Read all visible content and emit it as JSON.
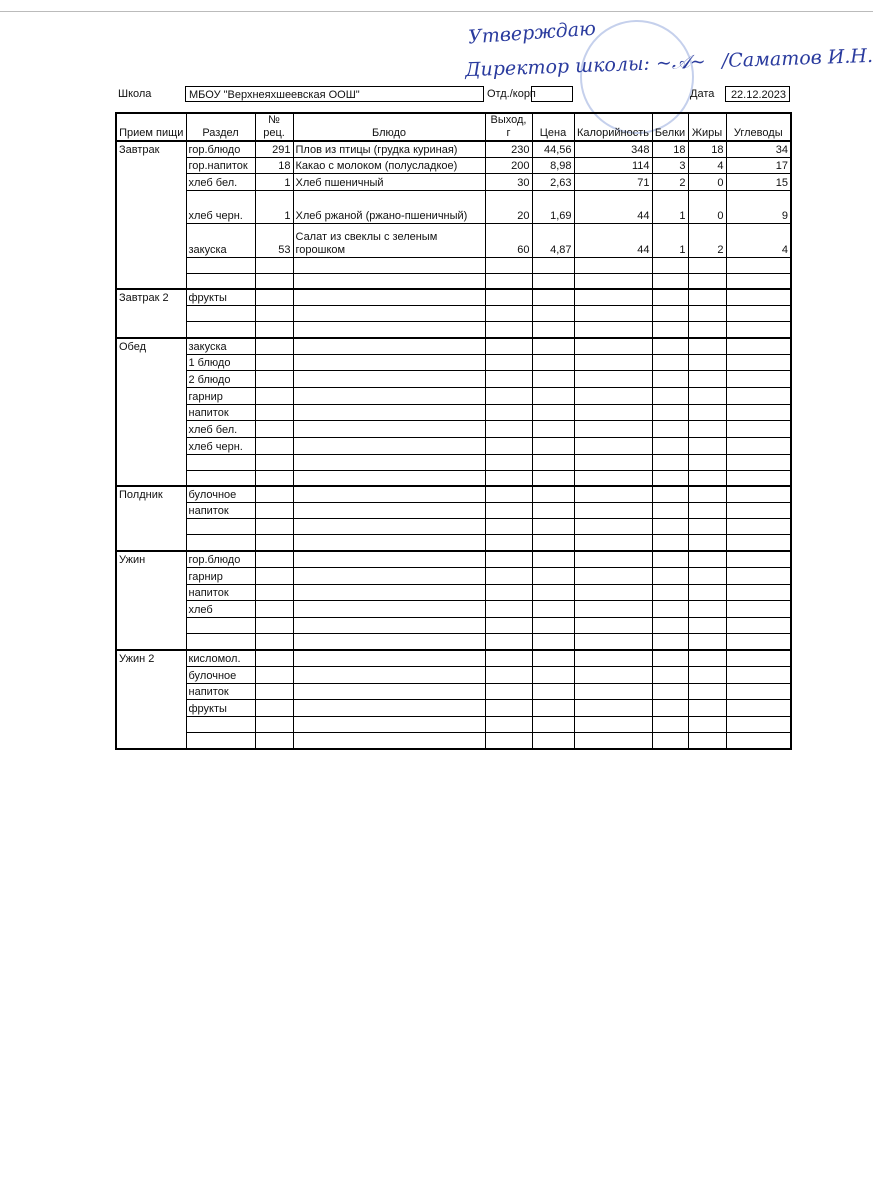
{
  "approval": {
    "title": "Утверждаю",
    "signatory": "Директор школы:",
    "name": "/Саматов И.Н."
  },
  "header": {
    "school_label": "Школа",
    "school": "МБОУ \"Верхнеяхшеевская ООШ\"",
    "dept_label": "Отд./корп",
    "date_label": "Дата",
    "date": "22.12.2023"
  },
  "table": {
    "columns": [
      "Прием пищи",
      "Раздел",
      "№ рец.",
      "Блюдо",
      "Выход, г",
      "Цена",
      "Калорийность",
      "Белки",
      "Жиры",
      "Углеводы"
    ],
    "groups": [
      {
        "meal": "Завтрак",
        "rows": [
          [
            "гор.блюдо",
            291,
            "Плов из птицы (грудка куриная)",
            230,
            "44,56",
            348,
            18,
            18,
            34
          ],
          [
            "гор.напиток",
            18,
            "Какао с молоком (полусладкое)",
            200,
            "8,98",
            114,
            3,
            4,
            17
          ],
          [
            "хлеб бел.",
            1,
            "Хлеб пшеничный",
            30,
            "2,63",
            71,
            2,
            0,
            15
          ],
          [
            "хлеб черн.",
            1,
            "Хлеб ржаной (ржано-пшеничный)",
            20,
            "1,69",
            44,
            1,
            0,
            9
          ],
          [
            "закуска",
            53,
            "Салат из свеклы с зеленым горошком",
            60,
            "4,87",
            44,
            1,
            2,
            4
          ],
          [],
          []
        ]
      },
      {
        "meal": "Завтрак 2",
        "rows": [
          [
            "фрукты"
          ],
          [],
          []
        ]
      },
      {
        "meal": "Обед",
        "rows": [
          [
            "закуска"
          ],
          [
            "1 блюдо"
          ],
          [
            "2 блюдо"
          ],
          [
            "гарнир"
          ],
          [
            "напиток"
          ],
          [
            "хлеб бел."
          ],
          [
            "хлеб черн."
          ],
          [],
          []
        ]
      },
      {
        "meal": "Полдник",
        "rows": [
          [
            "булочное"
          ],
          [
            "напиток"
          ],
          [],
          []
        ]
      },
      {
        "meal": "Ужин",
        "rows": [
          [
            "гор.блюдо"
          ],
          [
            "гарнир"
          ],
          [
            "напиток"
          ],
          [
            "хлеб"
          ],
          [],
          []
        ]
      },
      {
        "meal": "Ужин 2",
        "rows": [
          [
            "кисломол."
          ],
          [
            "булочное"
          ],
          [
            "напиток"
          ],
          [
            "фрукты"
          ],
          [],
          []
        ]
      }
    ]
  }
}
